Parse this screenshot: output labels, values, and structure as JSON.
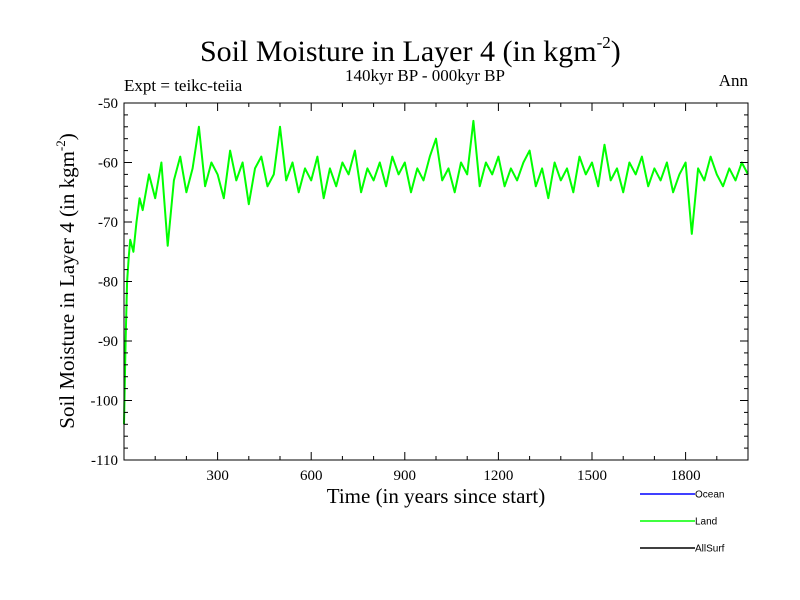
{
  "chart_data": {
    "type": "line",
    "title": "Soil Moisture in Layer 4 (in kgm",
    "title_sup": "-2",
    "title_close": ")",
    "subtitle": "140kyr BP - 000kyr BP",
    "left_label": "Expt = teikc-teiia",
    "right_label": "Ann",
    "xlabel": "Time (in years since start)",
    "ylabel": "Soil Moisture in Layer 4 (in kgm",
    "ylabel_sup": "-2",
    "ylabel_close": ")",
    "xlim": [
      0,
      2000
    ],
    "ylim": [
      -110,
      -50
    ],
    "xticks": [
      300,
      600,
      900,
      1200,
      1500,
      1800
    ],
    "yticks": [
      -110,
      -100,
      -90,
      -80,
      -70,
      -60,
      -50
    ],
    "grid": false,
    "legend_position": "bottom-right",
    "series": [
      {
        "name": "Ocean",
        "color": "#0000ff",
        "x": [],
        "y": []
      },
      {
        "name": "Land",
        "color": "#00ff00",
        "x": [
          0,
          5,
          10,
          15,
          20,
          30,
          40,
          50,
          60,
          80,
          100,
          120,
          140,
          160,
          180,
          200,
          220,
          240,
          260,
          280,
          300,
          320,
          340,
          360,
          380,
          400,
          420,
          440,
          460,
          480,
          500,
          520,
          540,
          560,
          580,
          600,
          620,
          640,
          660,
          680,
          700,
          720,
          740,
          760,
          780,
          800,
          820,
          840,
          860,
          880,
          900,
          920,
          940,
          960,
          980,
          1000,
          1020,
          1040,
          1060,
          1080,
          1100,
          1120,
          1140,
          1160,
          1180,
          1200,
          1220,
          1240,
          1260,
          1280,
          1300,
          1320,
          1340,
          1360,
          1380,
          1400,
          1420,
          1440,
          1460,
          1480,
          1500,
          1520,
          1540,
          1560,
          1580,
          1600,
          1620,
          1640,
          1660,
          1680,
          1700,
          1720,
          1740,
          1760,
          1780,
          1800,
          1820,
          1840,
          1860,
          1880,
          1900,
          1920,
          1940,
          1960,
          1980,
          2000
        ],
        "y": [
          -104,
          -90,
          -80,
          -76,
          -73,
          -75,
          -70,
          -66,
          -68,
          -62,
          -66,
          -60,
          -74,
          -63,
          -59,
          -65,
          -61,
          -54,
          -64,
          -60,
          -62,
          -66,
          -58,
          -63,
          -60,
          -67,
          -61,
          -59,
          -64,
          -62,
          -54,
          -63,
          -60,
          -65,
          -61,
          -63,
          -59,
          -66,
          -61,
          -64,
          -60,
          -62,
          -58,
          -65,
          -61,
          -63,
          -60,
          -64,
          -59,
          -62,
          -60,
          -65,
          -61,
          -63,
          -59,
          -56,
          -63,
          -61,
          -65,
          -60,
          -62,
          -53,
          -64,
          -60,
          -62,
          -59,
          -64,
          -61,
          -63,
          -60,
          -58,
          -64,
          -61,
          -66,
          -60,
          -63,
          -61,
          -65,
          -59,
          -62,
          -60,
          -64,
          -57,
          -63,
          -61,
          -65,
          -60,
          -62,
          -59,
          -64,
          -61,
          -63,
          -60,
          -65,
          -62,
          -60,
          -72,
          -61,
          -63,
          -59,
          -62,
          -64,
          -61,
          -63,
          -60,
          -62
        ]
      },
      {
        "name": "AllSurf",
        "color": "#000000",
        "x": [],
        "y": []
      }
    ]
  }
}
